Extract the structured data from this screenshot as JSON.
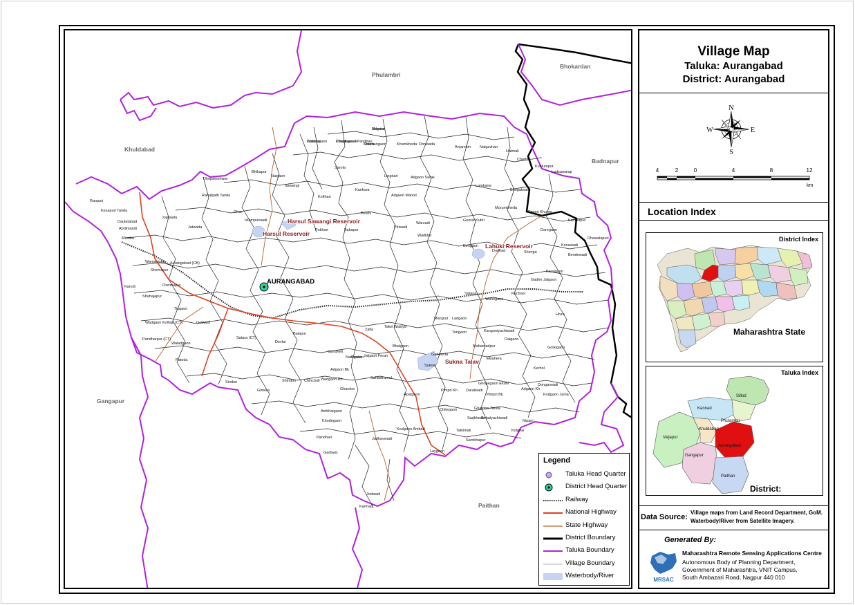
{
  "title": {
    "main": "Village Map",
    "taluka": "Taluka: Aurangabad",
    "district": "District: Aurangabad"
  },
  "compass": {
    "n": "N",
    "s": "S",
    "e": "E",
    "w": "W"
  },
  "scale": {
    "ticks": [
      "4",
      "2",
      "0",
      "4",
      "8",
      "12"
    ],
    "unit": "km"
  },
  "location_index": {
    "title": "Location Index",
    "district_index_label": "District Index",
    "district_index_caption": "Maharashtra State",
    "taluka_index_label": "Taluka Index",
    "taluka_index_caption": "District: Aurangabad"
  },
  "data_source": {
    "label": "Data Source:",
    "line1": "Village maps from Land Record Department, GoM.",
    "line2": "Waterbody/River from Satellite Imagery."
  },
  "generated_by": {
    "label": "Generated By:",
    "org": "Maharashtra Remote Sensing Applications Centre",
    "addr1": "Autonomous Body of Planning Department,",
    "addr2": "Government of Maharashtra, VNIT Campus,",
    "addr3": "South Ambazari Road, Nagpur 440 010",
    "logo_text": "MRSAC"
  },
  "legend": {
    "title": "Legend",
    "items": [
      {
        "label": "Taluka Head Quarter",
        "symbol": "taluka-hq"
      },
      {
        "label": "District Head Quarter",
        "symbol": "district-hq"
      },
      {
        "label": "Railway",
        "symbol": "railway"
      },
      {
        "label": "National Highway",
        "symbol": "national-highway"
      },
      {
        "label": "State Highway",
        "symbol": "state-highway"
      },
      {
        "label": "District Boundary",
        "symbol": "district-boundary"
      },
      {
        "label": "Taluka Boundary",
        "symbol": "taluka-boundary"
      },
      {
        "label": "Village Boundary",
        "symbol": "village-boundary"
      },
      {
        "label": "Waterbody/River",
        "symbol": "waterbody"
      }
    ]
  },
  "colors": {
    "taluka_boundary": "#b020e0",
    "national_highway": "#e0401a",
    "state_highway": "#b8602a",
    "district_boundary": "#000000",
    "village_boundary": "#202020",
    "waterbody": "#c6d4f2",
    "selected_taluka": "#e01010"
  },
  "map": {
    "neighbors": {
      "phulambri": "Phulambri",
      "bhokardan": "Bhokardan",
      "khuldabad": "Khuldabad",
      "badnapur": "Badnapur",
      "gangapur": "Gangapur",
      "paithan": "Paithan"
    },
    "hq_label": "AURANGABAD",
    "reservoirs": {
      "harsul_sawangi": "Harsul Sawangi Reservoir",
      "harsul": "Harsul Reservoir",
      "lahuki": "Lahuki Reservoir",
      "sukna": "Sukna Talav"
    },
    "villages": [
      "Morvira",
      "Chauka",
      "Chaukawadi",
      "Satala",
      "Khamkheda",
      "Donwada",
      "Anjandoh",
      "Naigavhan",
      "Hatmali",
      "Charthe",
      "Kustumpur",
      "Ladsawangi",
      "Bhikapur",
      "Naigaon",
      "Sarola",
      "Sawangi",
      "Lingdari",
      "Adgaon Sarak",
      "Lamkana",
      "Bhogalwadi",
      "Pimpri Khunta",
      "Dhopateshwar",
      "Kolthan",
      "Kankora",
      "Adgaon Mahoil",
      "Murumkheda",
      "Rahalpatti Tanda",
      "Jogwada",
      "Jatwada",
      "Ohar",
      "Islampurwadi",
      "Pokhari",
      "Bakapur",
      "Pelshi",
      "Piriwadi",
      "Warzadi",
      "Georai Kubri",
      "Daregaon",
      "Kacharpur",
      "Abdimandi",
      "Wadkha",
      "Bengaon",
      "Dudhad",
      "Shevga",
      "Konewadi",
      "Bendewadi",
      "Dhawalapuri",
      "Ranpuri",
      "Kesapuri Tanda",
      "Daulatabad",
      "Mitmita",
      "Aurangabad (CB)",
      "Wanjarwadi",
      "Shemapur",
      "Karodi",
      "Shahajapur",
      "Chermapur",
      "Tisgaon",
      "Wadgaon Kolhati (CT)",
      "Golwadi",
      "Pandharpur (CT)",
      "Waladgaon",
      "Patoda",
      "Satara (CT)",
      "Devlai",
      "Balapur",
      "Gandheli",
      "Naregaon",
      "Jalgaon Feran",
      "Karajgaon",
      "Gadhe Jalgaon",
      "Kachner",
      "Jodwadi",
      "Karmad",
      "Satana",
      "Wahegaon",
      "Hivra",
      "Ladgaon",
      "Mangrul",
      "Tongaon",
      "Zalta",
      "Talwi Waidya",
      "Bhalgaon",
      "Kangoniyachiwadi",
      "Golatgaon",
      "Mahamadpur",
      "Eklahera",
      "Kerhol",
      "Garkheda",
      "Sukna",
      "Apatgaon",
      "Chitegaon",
      "Pimpri Bk",
      "Dongarwadi",
      "Kodgaon Jalna",
      "Kodgaon Ambad",
      "Laygaon",
      "Pandhari",
      "Khodegaon",
      "Gadiwat",
      "Ghardon",
      "Chincholi",
      "Shindon",
      "Sindon",
      "Gimera",
      "Wadgaon Kh",
      "Sahastramul",
      "Pardari",
      "Adgaon Bk",
      "Nipani",
      "Kolghar",
      "Ghogegaon Ekdhi",
      "Adgaon Kh",
      "Daralwadi",
      "Pimpri Kh",
      "Taklimali",
      "Sambhapur",
      "Sarjkheda",
      "Ambhaigaon",
      "Jadhavwadi",
      "Daigaon",
      "Ghardon Tanda",
      "Bebalyachiwadi",
      "Jalgaon",
      "Wahhegaon",
      "Pimplegaon Pandhari",
      "Dhamangaon"
    ]
  }
}
